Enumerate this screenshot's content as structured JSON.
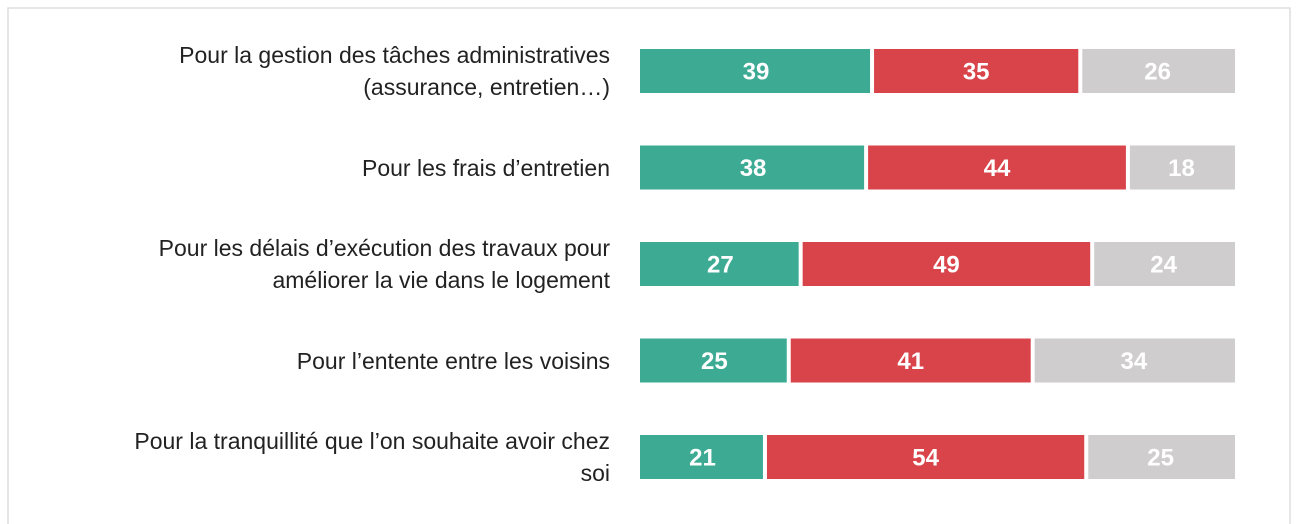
{
  "chart_data": {
    "type": "stacked_bar_horizontal",
    "categories": [
      "Pour la gestion des tâches administratives\n(assurance, entretien…)",
      "Pour les frais d’entretien",
      "Pour les délais d’exécution des travaux pour\naméliorer la vie dans le logement",
      "Pour l’entente entre les voisins",
      "Pour la tranquillité que l’on souhaite avoir chez\nsoi"
    ],
    "series": [
      {
        "color": "#3dab94",
        "values": [
          39,
          38,
          27,
          25,
          21
        ]
      },
      {
        "color": "#d9434a",
        "values": [
          35,
          44,
          49,
          41,
          54
        ]
      },
      {
        "color": "#cfcdcd",
        "values": [
          26,
          18,
          24,
          34,
          25
        ]
      }
    ]
  }
}
